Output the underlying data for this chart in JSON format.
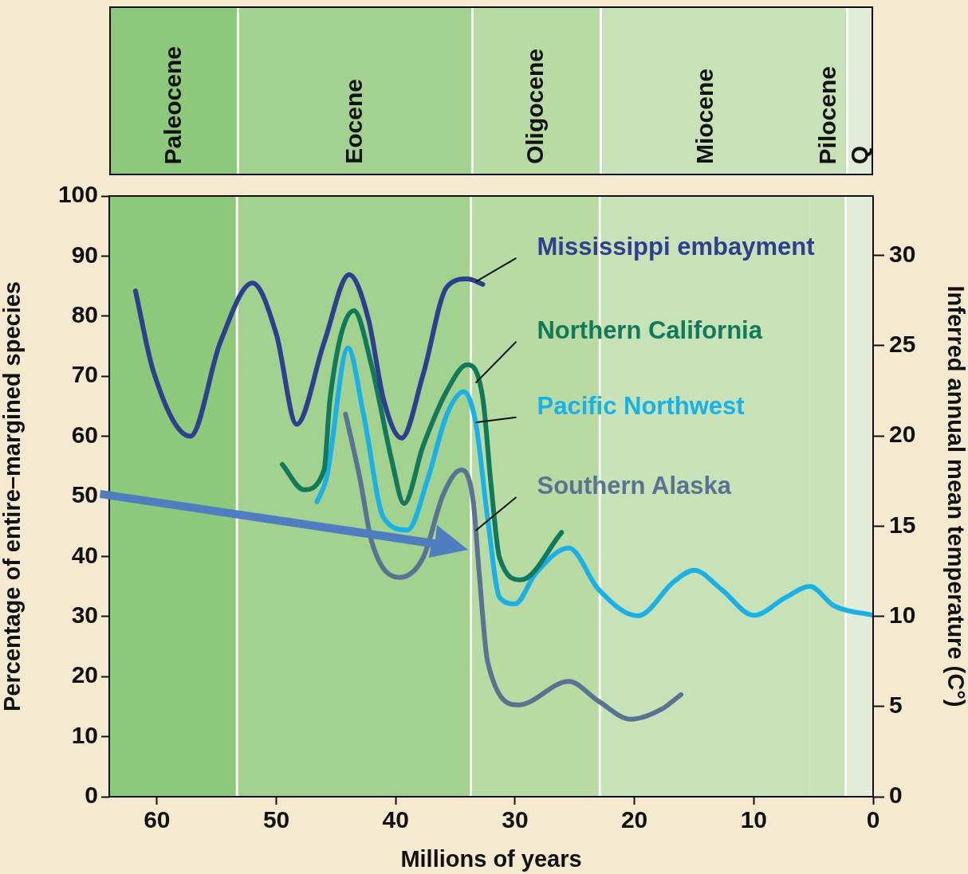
{
  "chart_data": {
    "type": "line",
    "xlabel": "Millions of years",
    "ylabel": "Percentage of entire–margined species",
    "y2label": "Inferred annual mean temperature (C°)",
    "xlim": [
      64,
      0
    ],
    "xticks": [
      60,
      50,
      40,
      30,
      20,
      10,
      0
    ],
    "ylim": [
      0,
      100
    ],
    "yticks": [
      0,
      10,
      20,
      30,
      40,
      50,
      60,
      70,
      80,
      90,
      100
    ],
    "y2lim": [
      0,
      33.3
    ],
    "y2ticks": [
      0,
      5,
      10,
      15,
      20,
      25,
      30
    ],
    "marker": "none",
    "line_style": "solid",
    "legend": false,
    "bands": [
      {
        "axis": "x",
        "from": 64,
        "to": 53.3,
        "label": "Paleocene",
        "color": "#8cc97a"
      },
      {
        "axis": "x",
        "from": 53.3,
        "to": 33.7,
        "label": "Eocene",
        "color": "#a3d18f"
      },
      {
        "axis": "x",
        "from": 33.7,
        "to": 22.9,
        "label": "Oligocene",
        "color": "#b8dba4"
      },
      {
        "axis": "x",
        "from": 22.9,
        "to": 5.3,
        "label": "Miocene",
        "color": "#c8e2b7"
      },
      {
        "axis": "x",
        "from": 5.3,
        "to": 2.3,
        "label": "Pilocene",
        "color": "#c8e2b7"
      },
      {
        "axis": "x",
        "from": 2.3,
        "to": 0,
        "label": "Q",
        "color": "#e2ecd8"
      }
    ],
    "series": [
      {
        "name": "Mississippi embayment",
        "color": "#2e3f8f",
        "x": [
          61.8,
          60.3,
          57.2,
          54.7,
          52,
          50,
          48.3,
          46,
          43.9,
          42.3,
          41,
          39.5,
          37.7,
          35.7,
          34,
          32.7
        ],
        "values": [
          84.2,
          70.8,
          60,
          75.6,
          85.5,
          77,
          62,
          75.6,
          86.9,
          79.6,
          66,
          59.7,
          70.3,
          84.9,
          86.2,
          85.3
        ]
      },
      {
        "name": "Northern California",
        "color": "#127a5a",
        "x": [
          49.5,
          47.7,
          46,
          45.5,
          43.5,
          42,
          40.3,
          39.3,
          37.7,
          35.7,
          34,
          32.7,
          32,
          31.3,
          29.5,
          26.1
        ],
        "values": [
          55.3,
          51.1,
          54.4,
          66.3,
          80.9,
          71.6,
          55.7,
          48.8,
          58.4,
          67.6,
          71.9,
          66.3,
          51.7,
          39.8,
          36.1,
          44
        ]
      },
      {
        "name": "Pacific Northwest",
        "color": "#1ab0e8",
        "x": [
          46.6,
          45.8,
          44,
          42.7,
          41,
          39,
          37.3,
          35.7,
          34.3,
          33.3,
          32.3,
          31.3,
          30,
          28.3,
          25.5,
          23,
          19.7,
          16.7,
          15,
          12.7,
          10,
          7.3,
          5.3,
          3.3,
          0
        ],
        "values": [
          49.1,
          53,
          74.7,
          63.7,
          46.4,
          44.4,
          53,
          63.7,
          67.4,
          62.3,
          46.4,
          33.2,
          32.1,
          37.1,
          41.4,
          34.5,
          30.1,
          35.8,
          37.7,
          34.5,
          30.2,
          33.2,
          35,
          31.8,
          30.2
        ]
      },
      {
        "name": "Southern Alaska",
        "color": "#5a7393",
        "x": [
          44.2,
          43,
          42,
          39.7,
          37.7,
          36,
          34.5,
          33.5,
          33,
          32.3,
          29.7,
          25.5,
          23,
          20.3,
          17.7,
          16.1
        ],
        "values": [
          63.7,
          53,
          42.4,
          36.5,
          39.8,
          50.4,
          54.4,
          49.1,
          37.1,
          22.5,
          15.3,
          19.2,
          15.9,
          12.9,
          14.6,
          17
        ]
      }
    ]
  }
}
